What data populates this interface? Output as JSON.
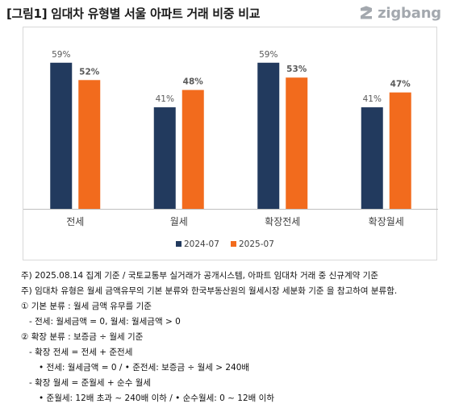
{
  "header": {
    "title": "[그림1] 임대차 유형별 서울 아파트 거래 비중 비교",
    "logo_text": "zigbang"
  },
  "colors": {
    "series_2024": "#223a5e",
    "series_2025": "#f26b1d",
    "grid": "#d9d9d9",
    "axis": "#bfbfbf",
    "label_text": "#595959",
    "category_text": "#404040",
    "logo": "#a3a8ae"
  },
  "chart_data": {
    "type": "bar",
    "title": "",
    "xlabel": "",
    "ylabel": "",
    "categories": [
      "전세",
      "월세",
      "확장전세",
      "확장월세"
    ],
    "series": [
      {
        "name": "2024-07",
        "values": [
          59,
          41,
          59,
          41
        ],
        "labels": [
          "59%",
          "41%",
          "59%",
          "41%"
        ]
      },
      {
        "name": "2025-07",
        "values": [
          52,
          48,
          53,
          47
        ],
        "labels": [
          "52%",
          "48%",
          "53%",
          "47%"
        ]
      }
    ],
    "ylim": [
      0,
      70
    ],
    "grid": false,
    "legend_position": "bottom"
  },
  "notes": {
    "lines": [
      "주) 2025.08.14 집계 기준 / 국토교통부 실거래가 공개시스템, 아파트 임대차 거래 중 신규계약 기준",
      "주) 임대차 유형은 월세 금액유무의 기본 분류와 한국부동산원의 월세시장 세분화 기준 을 참고하여 분류함.",
      "① 기본 분류 : 월세 금액 유무를 기준",
      "- 전세: 월세금액 = 0, 월세: 월세금액 > 0",
      "② 확장 분류 : 보증금 ÷ 월세 기준",
      "- 확장 전세 = 전세 + 준전세",
      "• 전세: 월세금액 = 0 / • 준전세: 보증금 ÷ 월세 > 240배",
      "- 확장 월세 = 준월세 + 순수 월세",
      "• 준월세: 12배 초과 ~ 240배 이하  /  • 순수월세: 0 ~ 12배 이하"
    ]
  }
}
